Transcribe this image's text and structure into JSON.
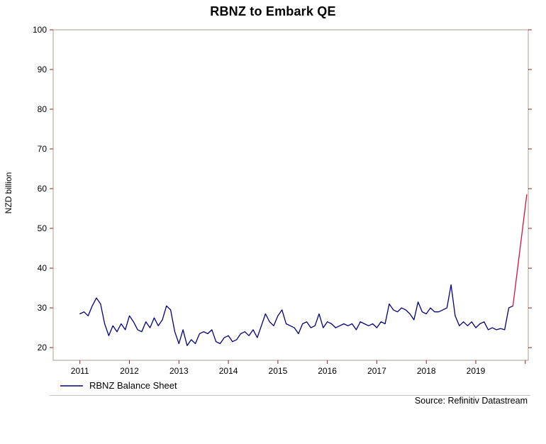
{
  "title": "RBNZ to Embark QE",
  "source": "Source: Refinitiv Datastream",
  "chart_data": {
    "type": "line",
    "title": "RBNZ to Embark QE",
    "xlabel": "",
    "ylabel": "NZD billion",
    "ylim": [
      16.8,
      100
    ],
    "xlim": [
      2010.46,
      2020.06
    ],
    "yticks": [
      20,
      30,
      40,
      50,
      60,
      70,
      80,
      90,
      100
    ],
    "xticks": [
      2011,
      2012,
      2013,
      2014,
      2015,
      2016,
      2017,
      2018,
      2019
    ],
    "xtick_marks": [
      2011,
      2012,
      2013,
      2014,
      2015,
      2016,
      2017,
      2018,
      2019,
      2020
    ],
    "grid": false,
    "legend_position": "bottom-left",
    "colors": {
      "frame": "#ab9e8f",
      "tick": "#8b2020",
      "text": "#000000"
    },
    "series": [
      {
        "name": "RBNZ Balance Sheet",
        "color": "#000080",
        "x_start": 2011.0,
        "x_step": 0.083333,
        "values": [
          28.5,
          29.0,
          28.0,
          30.5,
          32.5,
          31.0,
          26.0,
          23.0,
          25.5,
          24.0,
          26.0,
          24.5,
          28.0,
          26.5,
          24.5,
          24.0,
          26.5,
          25.0,
          27.5,
          25.5,
          27.0,
          30.5,
          29.5,
          24.0,
          21.0,
          24.5,
          20.5,
          22.0,
          21.0,
          23.5,
          24.0,
          23.5,
          24.5,
          21.5,
          21.0,
          22.5,
          23.0,
          21.5,
          22.0,
          23.5,
          24.0,
          23.0,
          24.5,
          22.5,
          25.5,
          28.5,
          26.5,
          25.5,
          28.0,
          29.5,
          26.0,
          25.5,
          25.0,
          23.5,
          26.0,
          26.5,
          25.0,
          25.5,
          28.5,
          25.0,
          26.5,
          26.0,
          25.0,
          25.5,
          26.0,
          25.5,
          26.0,
          24.5,
          26.5,
          26.0,
          25.5,
          26.0,
          25.0,
          26.5,
          26.0,
          31.0,
          29.5,
          29.0,
          30.0,
          29.5,
          28.5,
          27.0,
          31.5,
          29.0,
          28.5,
          30.0,
          29.0,
          29.0,
          29.5,
          30.0,
          35.8,
          28.0,
          25.5,
          26.5,
          25.5,
          26.5,
          25.0,
          26.0,
          26.5,
          24.5,
          25.0,
          24.5,
          24.8,
          24.5,
          30.0,
          30.5
        ]
      },
      {
        "name": "",
        "color": "#d8103c",
        "x": [
          2019.75,
          2020.03
        ],
        "values": [
          30.5,
          58.5
        ]
      }
    ]
  }
}
